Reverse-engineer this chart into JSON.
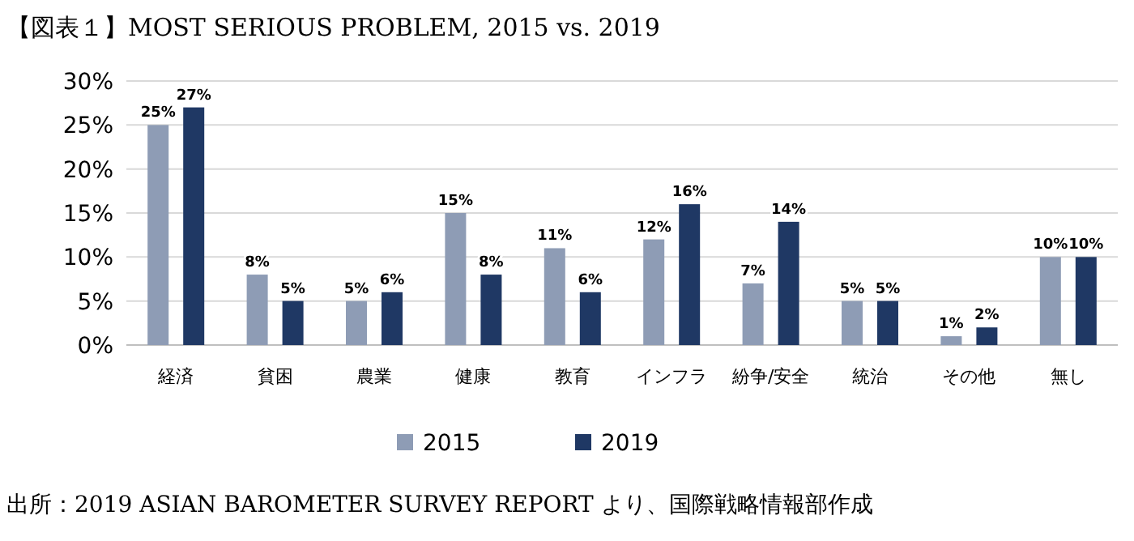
{
  "chart_data": {
    "type": "bar",
    "title": "【図表１】MOST SERIOUS PROBLEM, 2015 vs. 2019",
    "categories": [
      "経済",
      "貧困",
      "農業",
      "健康",
      "教育",
      "インフラ",
      "紛争/安全",
      "統治",
      "その他",
      "無し"
    ],
    "series": [
      {
        "name": "2015",
        "color": "#8e9cb5",
        "values": [
          25,
          8,
          5,
          15,
          11,
          12,
          7,
          5,
          1,
          10
        ],
        "value_labels": [
          "25%",
          "8%",
          "5%",
          "15%",
          "11%",
          "12%",
          "7%",
          "5%",
          "1%",
          "10%"
        ]
      },
      {
        "name": "2019",
        "color": "#1f3864",
        "values": [
          27,
          5,
          6,
          8,
          6,
          16,
          14,
          5,
          2,
          10
        ],
        "value_labels": [
          "27%",
          "5%",
          "6%",
          "8%",
          "6%",
          "16%",
          "14%",
          "5%",
          "2%",
          "10%"
        ]
      }
    ],
    "ylim": [
      0,
      30
    ],
    "yticks": [
      {
        "value": 0,
        "label": "0%"
      },
      {
        "value": 5,
        "label": "5%"
      },
      {
        "value": 10,
        "label": "10%"
      },
      {
        "value": 15,
        "label": "15%"
      },
      {
        "value": 20,
        "label": "20%"
      },
      {
        "value": 25,
        "label": "25%"
      },
      {
        "value": 30,
        "label": "30%"
      }
    ],
    "grid": "y",
    "legend": "bottom",
    "annotations": [
      "出所：2019 ASIAN BAROMETER SURVEY REPORT より、国際戦略情報部作成"
    ]
  }
}
